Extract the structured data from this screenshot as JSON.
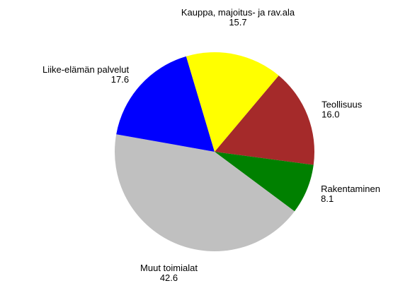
{
  "chart_data": {
    "type": "pie",
    "categories": [
      "Teollisuus",
      "Rakentaminen",
      "Muut toimialat",
      "Liike-elämän palvelut",
      "Kauppa, majoitus- ja rav.ala"
    ],
    "values": [
      16.0,
      8.1,
      42.6,
      17.6,
      15.7
    ],
    "value_labels": [
      "16.0",
      "8.1",
      "42.6",
      "17.6",
      "15.7"
    ],
    "colors": [
      "#a52a2a",
      "#008000",
      "#c0c0c0",
      "#0000ff",
      "#ffff00"
    ]
  }
}
